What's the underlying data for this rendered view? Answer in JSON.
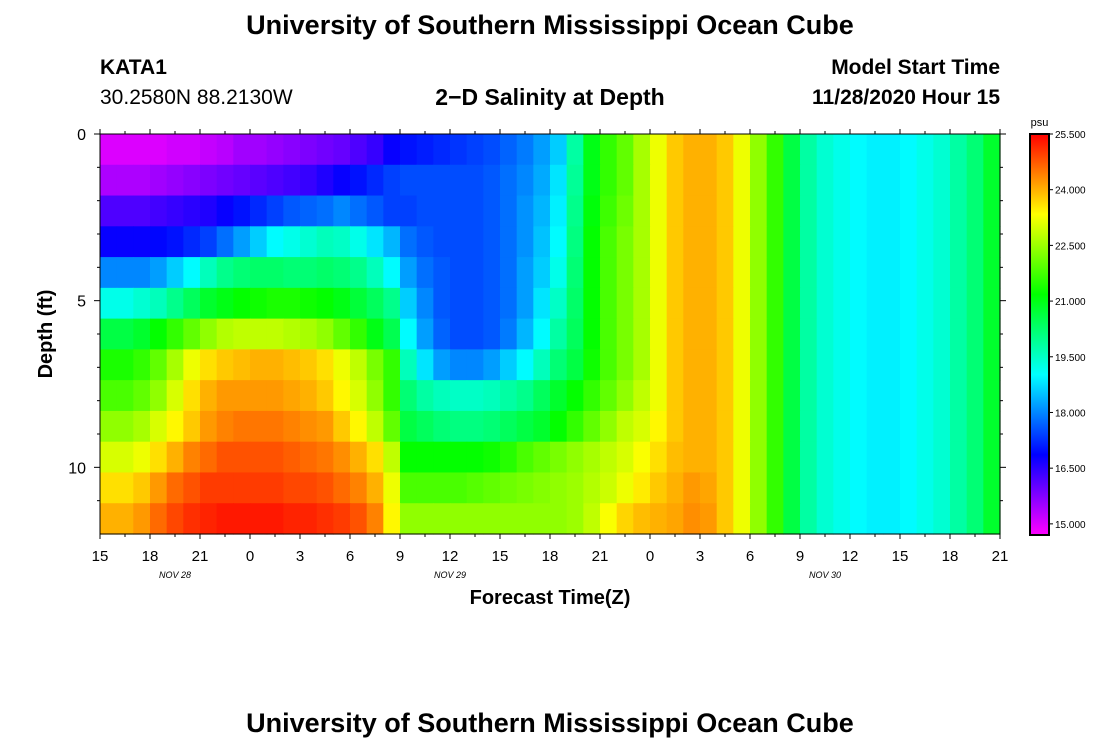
{
  "header": {
    "title_top": "University of Southern Mississippi Ocean Cube",
    "title_bottom": "University of Southern Mississippi Ocean Cube",
    "station_id": "KATA1",
    "station_coords": "30.2580N 88.2130W",
    "plot_title": "2−D Salinity at Depth",
    "model_start_label": "Model Start Time",
    "model_start_value": "11/28/2020 Hour 15"
  },
  "chart_data": {
    "type": "heatmap",
    "title": "2-D Salinity at Depth",
    "xlabel": "Forecast Time(Z)",
    "ylabel": "Depth (ft)",
    "x_ticks": [
      "15",
      "18",
      "21",
      "0",
      "3",
      "6",
      "9",
      "12",
      "15",
      "18",
      "21",
      "0",
      "3",
      "6",
      "9",
      "12",
      "15",
      "18",
      "21"
    ],
    "x_range_hours": [
      0,
      54
    ],
    "day_labels": [
      {
        "label": "NOV  28",
        "hour": 4.5
      },
      {
        "label": "NOV  29",
        "hour": 21
      },
      {
        "label": "NOV  30",
        "hour": 43.5
      }
    ],
    "y_ticks": [
      0,
      5,
      10
    ],
    "y_range_ft": [
      0,
      12
    ],
    "colorbar": {
      "unit": "psu",
      "min": 14.7,
      "max": 25.5,
      "tick_values": [
        15.0,
        16.5,
        18.0,
        19.5,
        21.0,
        22.5,
        24.0,
        25.5
      ],
      "tick_labels": [
        "15.000",
        "16.500",
        "18.000",
        "19.500",
        "21.000",
        "22.500",
        "24.000",
        "25.500"
      ]
    },
    "time_hours": [
      0,
      1,
      2,
      3,
      4,
      5,
      6,
      7,
      8,
      9,
      10,
      11,
      12,
      13,
      14,
      15,
      16,
      17,
      18,
      19,
      20,
      21,
      22,
      23,
      24,
      25,
      26,
      27,
      28,
      29,
      30,
      31,
      32,
      33,
      34,
      35,
      36,
      37,
      38,
      39,
      40,
      41,
      42,
      43,
      44,
      45,
      46,
      47,
      48,
      49,
      50,
      51,
      52,
      53
    ],
    "depth_ft": [
      0,
      1,
      2,
      3,
      4,
      5,
      6,
      7,
      8,
      9,
      10,
      11,
      12
    ],
    "salinity_psu": [
      [
        15.0,
        15.0,
        15.0,
        15.0,
        15.1,
        15.1,
        15.2,
        15.3,
        15.5,
        15.5,
        15.6,
        15.7,
        15.8,
        15.9,
        16.0,
        16.2,
        16.4,
        16.8,
        17.0,
        17.1,
        17.2,
        17.3,
        17.4,
        17.5,
        17.7,
        17.9,
        18.2,
        18.6,
        19.8,
        21.0,
        21.6,
        22.0,
        22.6,
        23.2,
        23.8,
        24.0,
        24.0,
        23.8,
        23.2,
        22.4,
        21.6,
        20.6,
        19.8,
        19.4,
        19.2,
        19.0,
        18.9,
        18.9,
        19.0,
        19.2,
        19.4,
        19.8,
        20.2,
        20.8
      ],
      [
        15.4,
        15.4,
        15.4,
        15.5,
        15.6,
        15.7,
        15.8,
        15.9,
        16.0,
        16.1,
        16.2,
        16.3,
        16.4,
        16.6,
        16.8,
        17.0,
        17.2,
        17.4,
        17.5,
        17.5,
        17.5,
        17.5,
        17.5,
        17.6,
        17.8,
        18.0,
        18.3,
        18.8,
        19.9,
        21.0,
        21.6,
        22.0,
        22.6,
        23.2,
        23.8,
        24.0,
        24.0,
        23.8,
        23.2,
        22.4,
        21.6,
        20.6,
        19.8,
        19.4,
        19.2,
        19.0,
        18.9,
        18.9,
        19.0,
        19.2,
        19.4,
        19.8,
        20.2,
        20.8
      ],
      [
        16.2,
        16.2,
        16.2,
        16.3,
        16.4,
        16.5,
        16.6,
        16.8,
        17.0,
        17.2,
        17.4,
        17.6,
        17.7,
        17.8,
        18.0,
        17.8,
        17.6,
        17.4,
        17.4,
        17.5,
        17.5,
        17.5,
        17.5,
        17.6,
        17.8,
        18.1,
        18.4,
        18.9,
        20.0,
        21.1,
        21.7,
        22.1,
        22.6,
        23.2,
        23.8,
        24.0,
        24.0,
        23.8,
        23.2,
        22.4,
        21.6,
        20.6,
        19.8,
        19.4,
        19.2,
        19.0,
        18.9,
        18.9,
        19.0,
        19.2,
        19.4,
        19.8,
        20.2,
        20.8
      ],
      [
        16.8,
        16.8,
        16.8,
        16.9,
        17.0,
        17.2,
        17.4,
        17.8,
        18.2,
        18.6,
        19.0,
        19.2,
        19.4,
        19.6,
        19.5,
        19.2,
        18.8,
        18.4,
        17.8,
        17.6,
        17.5,
        17.5,
        17.5,
        17.6,
        17.8,
        18.1,
        18.5,
        19.0,
        20.1,
        21.2,
        21.8,
        22.2,
        22.6,
        23.2,
        23.8,
        24.0,
        24.0,
        23.8,
        23.2,
        22.4,
        21.6,
        20.6,
        19.8,
        19.4,
        19.2,
        19.0,
        18.9,
        18.9,
        19.0,
        19.2,
        19.4,
        19.8,
        20.2,
        20.8
      ],
      [
        18.0,
        18.0,
        18.0,
        18.2,
        18.6,
        19.0,
        19.6,
        20.0,
        20.2,
        20.3,
        20.3,
        20.2,
        20.2,
        20.3,
        20.2,
        20.0,
        19.6,
        19.0,
        18.2,
        17.8,
        17.6,
        17.5,
        17.5,
        17.6,
        17.8,
        18.2,
        18.6,
        19.2,
        20.2,
        21.2,
        21.8,
        22.2,
        22.6,
        23.2,
        23.8,
        24.0,
        24.0,
        23.8,
        23.2,
        22.4,
        21.6,
        20.6,
        19.8,
        19.4,
        19.2,
        19.0,
        18.9,
        18.9,
        19.0,
        19.2,
        19.4,
        19.8,
        20.2,
        20.8
      ],
      [
        19.2,
        19.2,
        19.4,
        19.6,
        20.0,
        20.4,
        20.8,
        21.0,
        21.2,
        21.3,
        21.4,
        21.4,
        21.3,
        21.2,
        21.0,
        20.7,
        20.4,
        20.0,
        18.6,
        18.0,
        17.6,
        17.5,
        17.5,
        17.6,
        17.8,
        18.2,
        18.8,
        19.5,
        20.3,
        21.2,
        21.8,
        22.2,
        22.6,
        23.2,
        23.8,
        24.0,
        24.0,
        23.8,
        23.2,
        22.4,
        21.6,
        20.6,
        19.8,
        19.4,
        19.2,
        19.0,
        18.9,
        18.9,
        19.0,
        19.2,
        19.4,
        19.8,
        20.2,
        20.8
      ],
      [
        20.6,
        20.6,
        20.8,
        21.2,
        21.6,
        22.0,
        22.4,
        22.7,
        22.8,
        22.8,
        22.8,
        22.7,
        22.6,
        22.4,
        22.0,
        21.6,
        21.0,
        20.5,
        19.0,
        18.2,
        17.7,
        17.5,
        17.5,
        17.6,
        17.9,
        18.4,
        19.0,
        19.8,
        20.4,
        21.2,
        21.8,
        22.2,
        22.6,
        23.2,
        23.8,
        24.0,
        24.0,
        23.8,
        23.2,
        22.4,
        21.6,
        20.6,
        19.8,
        19.4,
        19.2,
        19.0,
        18.9,
        18.9,
        19.0,
        19.2,
        19.4,
        19.8,
        20.2,
        20.8
      ],
      [
        21.4,
        21.4,
        21.6,
        22.0,
        22.6,
        23.2,
        23.6,
        23.8,
        23.9,
        24.0,
        24.0,
        23.9,
        23.8,
        23.6,
        23.2,
        22.8,
        22.2,
        21.6,
        19.6,
        18.8,
        18.2,
        18.0,
        18.0,
        18.2,
        18.6,
        19.0,
        19.6,
        20.2,
        20.6,
        21.3,
        21.8,
        22.2,
        22.6,
        23.2,
        23.8,
        24.0,
        24.0,
        23.8,
        23.2,
        22.4,
        21.6,
        20.6,
        19.8,
        19.4,
        19.2,
        19.0,
        18.9,
        18.9,
        19.0,
        19.2,
        19.4,
        19.8,
        20.2,
        20.8
      ],
      [
        21.8,
        21.8,
        22.0,
        22.4,
        23.0,
        23.6,
        24.0,
        24.2,
        24.2,
        24.2,
        24.2,
        24.1,
        24.0,
        23.8,
        23.4,
        23.0,
        22.4,
        21.6,
        20.2,
        19.8,
        19.6,
        19.5,
        19.5,
        19.6,
        19.8,
        20.0,
        20.4,
        20.8,
        21.2,
        21.6,
        22.0,
        22.4,
        22.8,
        23.2,
        23.8,
        24.0,
        24.0,
        23.8,
        23.2,
        22.4,
        21.6,
        20.6,
        19.8,
        19.4,
        19.2,
        19.0,
        18.9,
        18.9,
        19.0,
        19.2,
        19.4,
        19.8,
        20.2,
        20.8
      ],
      [
        22.4,
        22.4,
        22.6,
        23.0,
        23.4,
        23.8,
        24.2,
        24.4,
        24.5,
        24.5,
        24.5,
        24.4,
        24.3,
        24.2,
        23.8,
        23.4,
        22.8,
        22.0,
        20.6,
        20.4,
        20.2,
        20.1,
        20.1,
        20.2,
        20.4,
        20.6,
        20.8,
        21.2,
        21.6,
        22.0,
        22.4,
        22.8,
        23.0,
        23.4,
        23.8,
        24.0,
        24.0,
        23.8,
        23.2,
        22.4,
        21.6,
        20.6,
        19.8,
        19.4,
        19.2,
        19.0,
        18.9,
        18.9,
        19.0,
        19.2,
        19.4,
        19.8,
        20.2,
        20.8
      ],
      [
        23.0,
        23.0,
        23.2,
        23.6,
        24.0,
        24.4,
        24.6,
        24.8,
        24.8,
        24.8,
        24.8,
        24.7,
        24.6,
        24.5,
        24.3,
        24.0,
        23.6,
        22.8,
        21.2,
        21.2,
        21.2,
        21.2,
        21.2,
        21.3,
        21.5,
        21.8,
        22.0,
        22.2,
        22.4,
        22.6,
        22.8,
        23.0,
        23.3,
        23.6,
        23.9,
        24.0,
        24.0,
        23.8,
        23.2,
        22.4,
        21.6,
        20.6,
        19.8,
        19.4,
        19.2,
        19.0,
        18.9,
        18.9,
        19.0,
        19.2,
        19.4,
        19.8,
        20.2,
        20.8
      ],
      [
        23.6,
        23.6,
        23.8,
        24.2,
        24.6,
        24.8,
        25.0,
        25.0,
        25.0,
        25.0,
        25.0,
        24.9,
        24.9,
        24.8,
        24.6,
        24.4,
        24.0,
        23.2,
        21.8,
        21.8,
        21.8,
        21.8,
        21.9,
        22.0,
        22.1,
        22.2,
        22.3,
        22.4,
        22.5,
        22.7,
        22.9,
        23.2,
        23.5,
        23.8,
        24.0,
        24.2,
        24.1,
        23.8,
        23.2,
        22.4,
        21.6,
        20.6,
        19.8,
        19.4,
        19.2,
        19.0,
        18.9,
        18.9,
        19.0,
        19.2,
        19.4,
        19.8,
        20.2,
        20.8
      ],
      [
        24.0,
        24.0,
        24.2,
        24.6,
        24.9,
        25.1,
        25.2,
        25.3,
        25.3,
        25.3,
        25.3,
        25.2,
        25.2,
        25.1,
        25.0,
        24.8,
        24.4,
        23.4,
        22.4,
        22.4,
        22.4,
        22.4,
        22.4,
        22.4,
        22.4,
        22.4,
        22.4,
        22.4,
        22.5,
        22.8,
        23.3,
        23.7,
        23.9,
        24.0,
        24.1,
        24.3,
        24.2,
        23.8,
        23.2,
        22.4,
        21.6,
        20.6,
        19.8,
        19.4,
        19.2,
        19.0,
        18.9,
        18.9,
        19.0,
        19.2,
        19.4,
        19.8,
        20.2,
        20.8
      ]
    ]
  }
}
